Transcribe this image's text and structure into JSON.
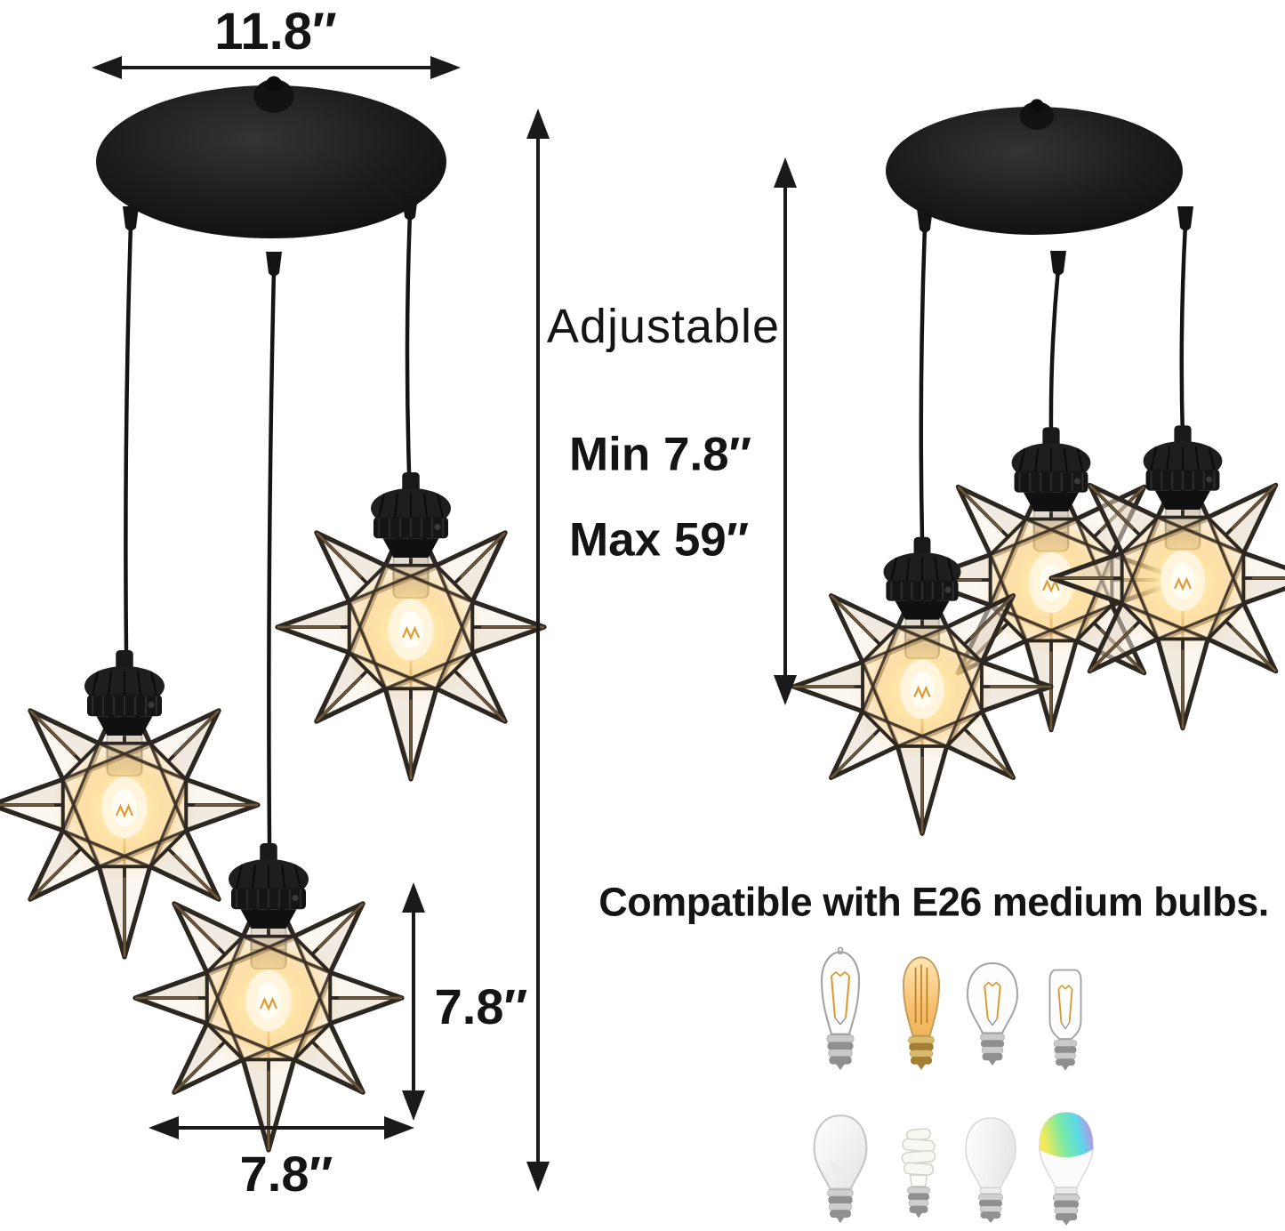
{
  "diagram": {
    "dimensions": {
      "canopy_width": "11.8″",
      "adjustable_label": "Adjustable",
      "min_drop": "Min 7.8″",
      "max_drop": "Max 59″",
      "shade_height": "7.8″",
      "shade_width": "7.8″"
    },
    "compatibility": {
      "text": "Compatible with E26 medium bulbs.",
      "bulb_icons_row1": [
        "st64-clear-filament-bulb-icon",
        "st64-amber-edison-bulb-icon",
        "a19-clear-filament-bulb-icon",
        "t45-tubular-filament-bulb-icon"
      ],
      "bulb_icons_row2": [
        "a19-frosted-incandescent-bulb-icon",
        "cfl-spiral-bulb-icon",
        "a19-white-led-bulb-icon",
        "a19-rgb-smart-bulb-icon"
      ]
    },
    "colors": {
      "annotation": "#1a1a1a",
      "canopy_black": "#1b1b1b",
      "frame_black": "#2c2721",
      "brass": "#a87e4a",
      "glow_warm": "#ffc966",
      "background": "#ffffff"
    }
  }
}
